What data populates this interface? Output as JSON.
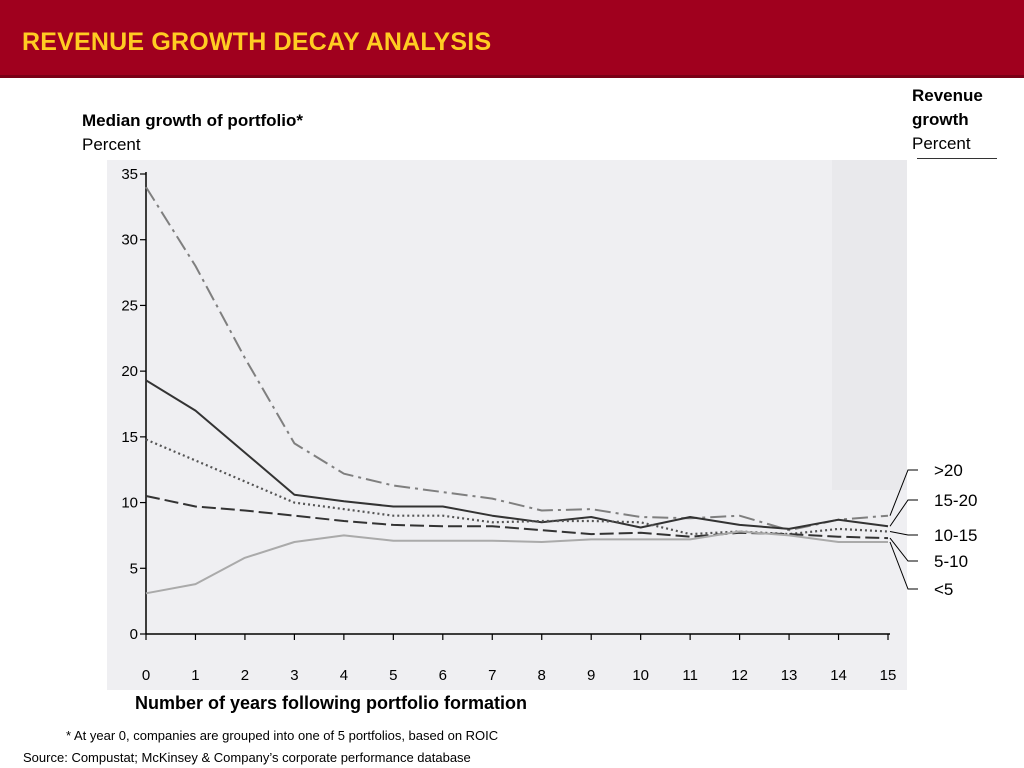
{
  "header": {
    "title": "REVENUE GROWTH DECAY ANALYSIS",
    "background": "#a0001e",
    "title_color": "#ffcc22"
  },
  "y_title": {
    "main": "Median growth of portfolio*",
    "unit": "Percent"
  },
  "right_title": {
    "main_line1": "Revenue",
    "main_line2": "growth",
    "unit": "Percent"
  },
  "x_title": "Number of years following portfolio formation",
  "footnote": {
    "marker": "*",
    "text": "At year 0, companies are grouped into one of 5 portfolios, based on ROIC"
  },
  "source": {
    "label": "Source:",
    "text": "Compustat; McKinsey & Company’s corporate performance database"
  },
  "chart_data": {
    "type": "line",
    "x": [
      0,
      1,
      2,
      3,
      4,
      5,
      6,
      7,
      8,
      9,
      10,
      11,
      12,
      13,
      14,
      15
    ],
    "xlim": [
      0,
      15
    ],
    "ylim": [
      0,
      35
    ],
    "yticks": [
      0,
      5,
      10,
      15,
      20,
      25,
      30,
      35
    ],
    "xticks": [
      0,
      1,
      2,
      3,
      4,
      5,
      6,
      7,
      8,
      9,
      10,
      11,
      12,
      13,
      14,
      15
    ],
    "grid": false,
    "series": [
      {
        "name": ">20",
        "style": "dashdot",
        "color": "#7f7f7f",
        "values": [
          34,
          28,
          21,
          14.5,
          12.2,
          11.3,
          10.8,
          10.3,
          9.4,
          9.5,
          8.9,
          8.8,
          9.0,
          7.9,
          8.7,
          9.0
        ]
      },
      {
        "name": "15-20",
        "style": "solid",
        "color": "#333333",
        "values": [
          19.3,
          17,
          13.8,
          10.6,
          10.1,
          9.7,
          9.7,
          9.0,
          8.5,
          8.9,
          8.1,
          8.9,
          8.3,
          8.0,
          8.7,
          8.2
        ]
      },
      {
        "name": "10-15",
        "style": "dotted",
        "color": "#555555",
        "values": [
          14.8,
          13.2,
          11.6,
          10.0,
          9.5,
          9.0,
          9.0,
          8.5,
          8.6,
          8.6,
          8.5,
          7.6,
          7.8,
          7.6,
          8.0,
          7.8
        ]
      },
      {
        "name": "5-10",
        "style": "dashed",
        "color": "#333333",
        "values": [
          10.5,
          9.7,
          9.4,
          9.0,
          8.6,
          8.3,
          8.2,
          8.2,
          7.9,
          7.6,
          7.7,
          7.4,
          7.7,
          7.6,
          7.4,
          7.3
        ]
      },
      {
        "name": "<5",
        "style": "solid",
        "color": "#aaaaaa",
        "values": [
          3.1,
          3.8,
          5.8,
          7.0,
          7.5,
          7.1,
          7.1,
          7.1,
          7.0,
          7.2,
          7.2,
          7.2,
          7.8,
          7.5,
          7.0,
          7.0
        ]
      }
    ]
  }
}
